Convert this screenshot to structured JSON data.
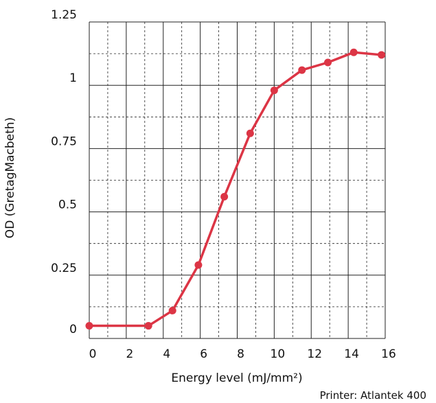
{
  "chart_data": {
    "type": "line",
    "xlabel": "Energy level (mJ/mm²)",
    "ylabel": "OD (GretagMacbeth)",
    "note": "Printer: Atlantek 400",
    "xlim": [
      0,
      16
    ],
    "ylim": [
      0,
      1.25
    ],
    "x_ticks": [
      0,
      2,
      4,
      6,
      8,
      10,
      12,
      14,
      16
    ],
    "y_ticks": [
      0,
      0.25,
      0.5,
      0.75,
      1,
      1.25
    ],
    "x_tick_labels": [
      "0",
      "2",
      "4",
      "6",
      "8",
      "10",
      "12",
      "14",
      "16"
    ],
    "y_tick_labels": [
      "0",
      "0.25",
      "0.5",
      "0.75",
      "1",
      "1.25"
    ],
    "grid": true,
    "series": [
      {
        "color": "#dc3545",
        "x": [
          0,
          3.2,
          4.5,
          5.9,
          7.3,
          8.7,
          10.0,
          11.5,
          12.9,
          14.3,
          15.8
        ],
        "y": [
          0.05,
          0.05,
          0.11,
          0.29,
          0.56,
          0.81,
          0.98,
          1.06,
          1.09,
          1.13,
          1.12
        ]
      }
    ]
  }
}
